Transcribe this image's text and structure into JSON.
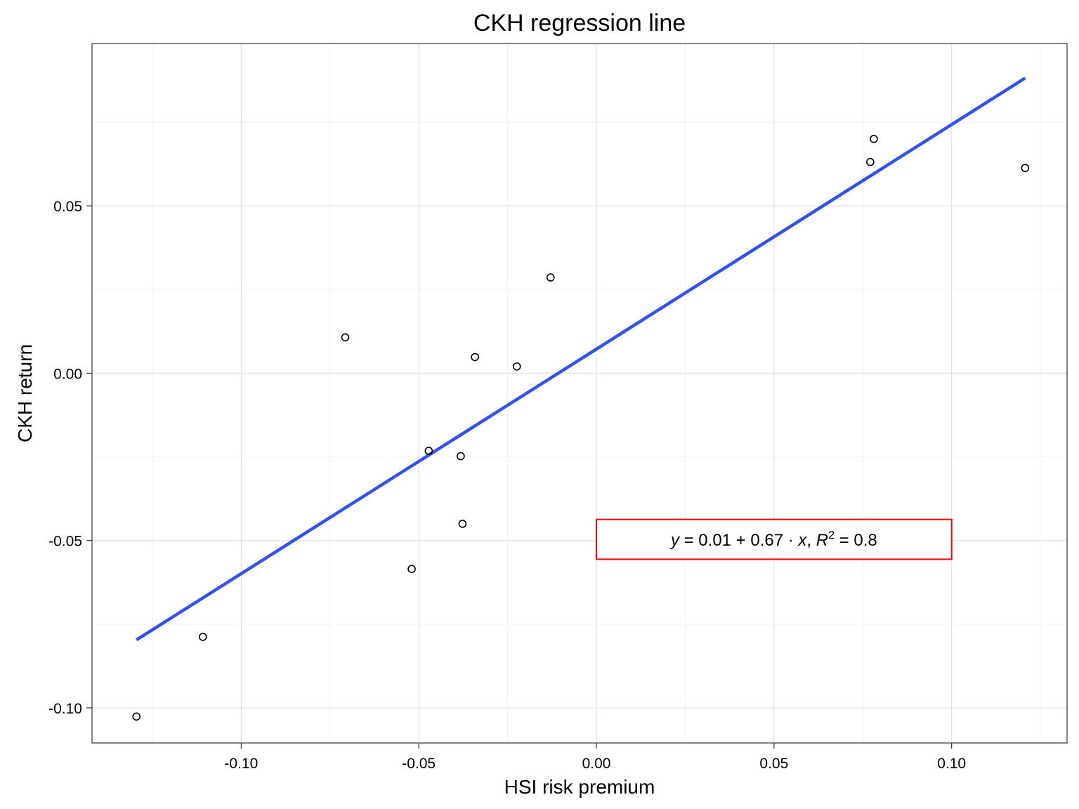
{
  "chart_data": {
    "type": "scatter",
    "title": "CKH regression line",
    "xlabel": "HSI risk premium",
    "ylabel": "CKH return",
    "xlim": [
      -0.142,
      0.1325
    ],
    "ylim": [
      -0.1105,
      0.0985
    ],
    "x_ticks": [
      -0.1,
      -0.05,
      0.0,
      0.05,
      0.1
    ],
    "x_tick_labels": [
      "-0.10",
      "-0.05",
      "0.00",
      "0.05",
      "0.10"
    ],
    "y_ticks": [
      -0.1,
      -0.05,
      0.0,
      0.05
    ],
    "y_tick_labels": [
      "-0.10",
      "-0.05",
      "0.00",
      "0.05"
    ],
    "grid": true,
    "series": [
      {
        "kind": "points",
        "points": [
          {
            "x": -0.1295,
            "y": -0.1026
          },
          {
            "x": -0.1108,
            "y": -0.0788
          },
          {
            "x": -0.0707,
            "y": 0.0107
          },
          {
            "x": -0.052,
            "y": -0.0585
          },
          {
            "x": -0.0472,
            "y": -0.0232
          },
          {
            "x": -0.0382,
            "y": -0.0248
          },
          {
            "x": -0.0377,
            "y": -0.045
          },
          {
            "x": -0.0342,
            "y": 0.0048
          },
          {
            "x": -0.0224,
            "y": 0.002
          },
          {
            "x": -0.0129,
            "y": 0.0286
          },
          {
            "x": 0.0771,
            "y": 0.0631
          },
          {
            "x": 0.0781,
            "y": 0.07
          },
          {
            "x": 0.1207,
            "y": 0.0613
          }
        ]
      },
      {
        "kind": "regression-line",
        "x_range": [
          -0.1295,
          0.1207
        ],
        "intercept": 0.0072,
        "slope": 0.671,
        "color": "#3050F8"
      }
    ],
    "annotation": {
      "text_y": "y",
      "text_eq": "=",
      "text_intercept": "0.01",
      "text_plus": "+",
      "text_slope": "0.67",
      "text_dot": "·",
      "text_x": "x",
      "text_comma": ",",
      "text_r": "R",
      "text_sup": "2",
      "text_r2": "= 0.8",
      "box_x_range": [
        0.0,
        0.1
      ],
      "box_y_range": [
        -0.0556,
        -0.0437
      ],
      "border_color": "#FF0000"
    },
    "colors": {
      "points": "#000000",
      "panel_border": "#333333",
      "major_grid": "#E0E0E0",
      "minor_grid": "#F2F2F2"
    }
  }
}
